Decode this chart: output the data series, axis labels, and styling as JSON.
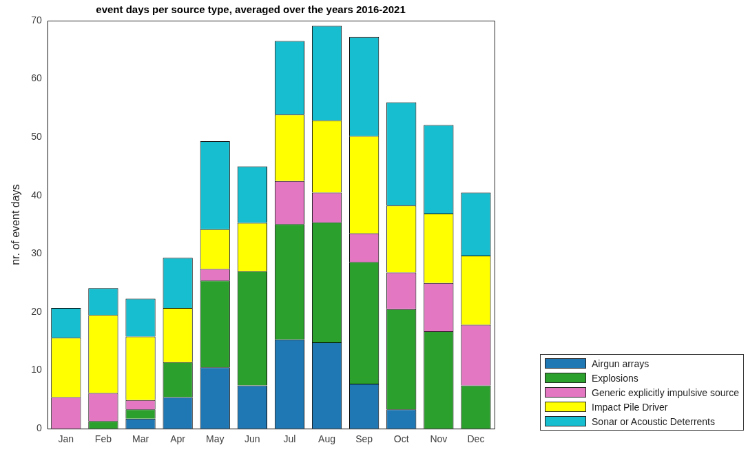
{
  "chart_data": {
    "type": "bar",
    "title": "event days per source type, averaged over the years 2016-2021",
    "ylabel": "nr. of event days",
    "categories": [
      "Jan",
      "Feb",
      "Mar",
      "Apr",
      "May",
      "Jun",
      "Jul",
      "Aug",
      "Sep",
      "Oct",
      "Nov",
      "Dec"
    ],
    "series": [
      {
        "name": "Airgun arrays",
        "color": "#1f77b4",
        "values": [
          0,
          0,
          1.7,
          5.4,
          10.5,
          7.4,
          15.3,
          14.8,
          7.7,
          3.3,
          0,
          0
        ]
      },
      {
        "name": "Explosions",
        "color": "#2ca02c",
        "values": [
          0,
          1.3,
          1.6,
          6.0,
          14.9,
          19.6,
          19.8,
          20.6,
          20.9,
          17.2,
          16.7,
          7.4
        ]
      },
      {
        "name": "Generic explicitly impulsive source",
        "color": "#e377c2",
        "values": [
          5.4,
          4.8,
          1.6,
          0,
          2.0,
          0,
          7.4,
          5.1,
          4.9,
          6.3,
          8.3,
          10.4
        ]
      },
      {
        "name": "Impact Pile Driver",
        "color": "#ffff00",
        "values": [
          10.2,
          13.4,
          10.9,
          9.3,
          6.8,
          8.3,
          11.4,
          12.4,
          16.7,
          11.5,
          11.9,
          11.9
        ]
      },
      {
        "name": "Sonar or Acoustic Deterrents",
        "color": "#17becf",
        "values": [
          5.1,
          4.6,
          6.5,
          8.6,
          15.1,
          9.7,
          12.6,
          16.2,
          17.0,
          17.7,
          15.2,
          10.8
        ]
      }
    ],
    "stacked": true,
    "ylim": [
      0,
      70
    ],
    "yticks": [
      0,
      10,
      20,
      30,
      40,
      50,
      60,
      70
    ],
    "grid": false,
    "legend": "bottom right"
  }
}
